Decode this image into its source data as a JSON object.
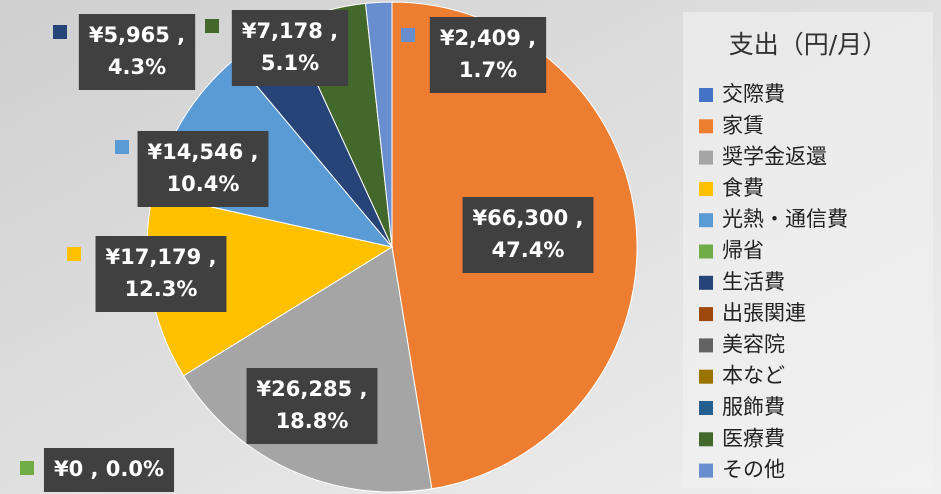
{
  "chart_data": {
    "type": "pie",
    "legend_title": "支出（円/月）",
    "categories": [
      "交際費",
      "家賃",
      "奨学金返還",
      "食費",
      "光熱・通信費",
      "帰省",
      "生活費",
      "出張関連",
      "美容院",
      "本など",
      "服飾費",
      "医療費",
      "その他"
    ],
    "values": [
      0,
      66300,
      26285,
      17179,
      14546,
      0,
      5965,
      0,
      0,
      0,
      0,
      7178,
      2409
    ],
    "value_labels": [
      null,
      [
        "¥66,300 ,",
        "47.4%"
      ],
      [
        "¥26,285 ,",
        "18.8%"
      ],
      [
        "¥17,179 ,",
        "12.3%"
      ],
      [
        "¥14,546 ,",
        "10.4%"
      ],
      [
        "¥0 , 0.0%"
      ],
      [
        "¥5,965 ,",
        "4.3%"
      ],
      null,
      null,
      null,
      null,
      [
        "¥7,178 ,",
        "5.1%"
      ],
      [
        "¥2,409 ,",
        "1.7%"
      ]
    ],
    "colors": [
      "#4472c4",
      "#ed7d31",
      "#a5a5a5",
      "#ffc000",
      "#5b9bd5",
      "#70ad47",
      "#264478",
      "#9e480e",
      "#636363",
      "#997300",
      "#255e91",
      "#43682b",
      "#698ed0"
    ],
    "legend": "right"
  }
}
